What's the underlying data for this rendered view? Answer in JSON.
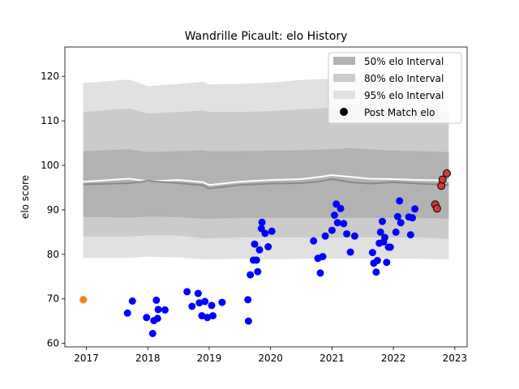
{
  "chart_data": {
    "type": "scatter",
    "title": "Wandrille Picault: elo History",
    "ylabel": "elo score",
    "xlabel": "",
    "xlim": [
      2016.65,
      2023.2
    ],
    "ylim": [
      59.2,
      126.6
    ],
    "x_ticks": [
      2017,
      2018,
      2019,
      2020,
      2021,
      2022,
      2023
    ],
    "y_ticks": [
      60,
      70,
      80,
      90,
      100,
      110,
      120
    ],
    "legend": {
      "placement": "top-right",
      "entries": [
        "50% elo Interval",
        "80% elo Interval",
        "95% elo Interval",
        "Post Match elo"
      ]
    },
    "colors": {
      "band95": "#e1e1e1",
      "band80": "#cbcbcb",
      "band50": "#b2b2b2",
      "mean_line": "#ffffff",
      "median_line": "#8a8a8a",
      "points": "#0000ff",
      "recent_points": "#d03a3a",
      "first_point": "#e8802a"
    },
    "bands": {
      "x": [
        2016.95,
        2017.7,
        2018.0,
        2018.5,
        2018.9,
        2019.0,
        2019.5,
        2020.0,
        2020.5,
        2021.0,
        2021.3,
        2021.6,
        2022.0,
        2022.4,
        2022.9
      ],
      "p95_upper": [
        118.5,
        119.3,
        117.8,
        118.3,
        118.8,
        118.2,
        118.3,
        118.6,
        119.2,
        119.5,
        120.3,
        119.8,
        119.2,
        118.8,
        118.4
      ],
      "p95_lower": [
        79.2,
        79.2,
        79.5,
        79.3,
        78.9,
        78.9,
        79.0,
        78.9,
        79.0,
        79.0,
        79.0,
        79.0,
        79.0,
        79.0,
        78.9
      ],
      "p80_upper": [
        112.0,
        112.8,
        111.6,
        112.0,
        112.3,
        112.0,
        112.0,
        112.2,
        112.6,
        113.0,
        113.8,
        113.2,
        112.6,
        112.2,
        112.0
      ],
      "p80_lower": [
        84.0,
        84.0,
        84.3,
        84.2,
        83.6,
        83.6,
        83.8,
        83.8,
        83.8,
        83.8,
        83.8,
        83.8,
        83.8,
        83.8,
        83.5
      ],
      "p50_upper": [
        103.2,
        103.6,
        103.0,
        103.2,
        103.4,
        103.2,
        103.2,
        103.3,
        103.4,
        103.6,
        103.9,
        103.6,
        103.3,
        103.2,
        103.0
      ],
      "p50_lower": [
        88.4,
        88.3,
        88.5,
        88.4,
        88.0,
        88.0,
        88.2,
        88.2,
        88.2,
        88.2,
        88.2,
        88.2,
        88.2,
        88.2,
        88.0
      ]
    },
    "mean_line": {
      "x": [
        2016.95,
        2017.7,
        2018.0,
        2018.5,
        2018.9,
        2019.0,
        2019.5,
        2020.0,
        2020.5,
        2020.8,
        2021.0,
        2021.3,
        2021.6,
        2022.0,
        2022.4,
        2022.9
      ],
      "y": [
        96.3,
        97.0,
        96.4,
        96.7,
        96.2,
        95.6,
        96.3,
        96.7,
        96.9,
        97.4,
        97.8,
        97.4,
        97.0,
        96.9,
        96.7,
        96.6
      ]
    },
    "median_line": {
      "x": [
        2016.95,
        2017.7,
        2018.0,
        2018.5,
        2018.9,
        2019.0,
        2019.5,
        2020.0,
        2020.5,
        2020.8,
        2021.0,
        2021.3,
        2021.6,
        2022.0,
        2022.4,
        2022.9
      ],
      "y": [
        95.7,
        96.0,
        96.5,
        96.0,
        95.5,
        94.8,
        95.6,
        95.9,
        96.0,
        96.4,
        96.9,
        96.2,
        95.9,
        96.2,
        95.9,
        95.6
      ]
    },
    "points": {
      "x": [
        2017.67,
        2017.75,
        2017.98,
        2018.08,
        2018.1,
        2018.14,
        2018.17,
        2018.16,
        2018.28,
        2018.64,
        2018.72,
        2018.82,
        2018.84,
        2018.88,
        2018.93,
        2018.97,
        2019.04,
        2019.06,
        2019.21,
        2019.64,
        2019.63,
        2019.67,
        2019.72,
        2019.74,
        2019.77,
        2019.79,
        2019.82,
        2019.85,
        2019.86,
        2019.91,
        2019.96,
        2020.02,
        2020.7,
        2020.77,
        2020.81,
        2020.85,
        2020.89,
        2021.0,
        2021.04,
        2021.07,
        2021.09,
        2021.14,
        2021.19,
        2021.24,
        2021.3,
        2021.37,
        2021.66,
        2021.68,
        2021.72,
        2021.74,
        2021.77,
        2021.79,
        2021.82,
        2021.84,
        2021.86,
        2021.89,
        2021.92,
        2021.95,
        2022.04,
        2022.07,
        2022.1,
        2022.12,
        2022.25,
        2022.28,
        2022.31,
        2022.35
      ],
      "y": [
        66.8,
        69.5,
        65.8,
        62.2,
        65.1,
        69.7,
        67.6,
        65.6,
        67.5,
        71.6,
        68.3,
        71.2,
        69.1,
        66.2,
        69.4,
        65.8,
        68.5,
        66.2,
        69.2,
        65.0,
        69.8,
        75.4,
        78.7,
        82.3,
        78.7,
        76.1,
        81.0,
        85.8,
        87.2,
        84.7,
        81.7,
        85.2,
        83.0,
        79.1,
        75.8,
        79.5,
        84.1,
        85.4,
        88.8,
        91.3,
        87.1,
        90.3,
        86.9,
        84.6,
        80.5,
        84.1,
        80.4,
        78.0,
        76.0,
        78.6,
        82.5,
        85.0,
        87.4,
        82.8,
        83.8,
        78.2,
        81.6,
        81.6,
        85.0,
        88.5,
        92.0,
        87.1,
        88.4,
        84.4,
        88.2,
        90.2
      ]
    },
    "recent_points": {
      "x": [
        2022.68,
        2022.71,
        2022.78,
        2022.8,
        2022.87
      ],
      "y": [
        91.2,
        90.3,
        95.4,
        96.8,
        98.2
      ]
    },
    "first_point": {
      "x": 2016.95,
      "y": 69.8
    }
  }
}
